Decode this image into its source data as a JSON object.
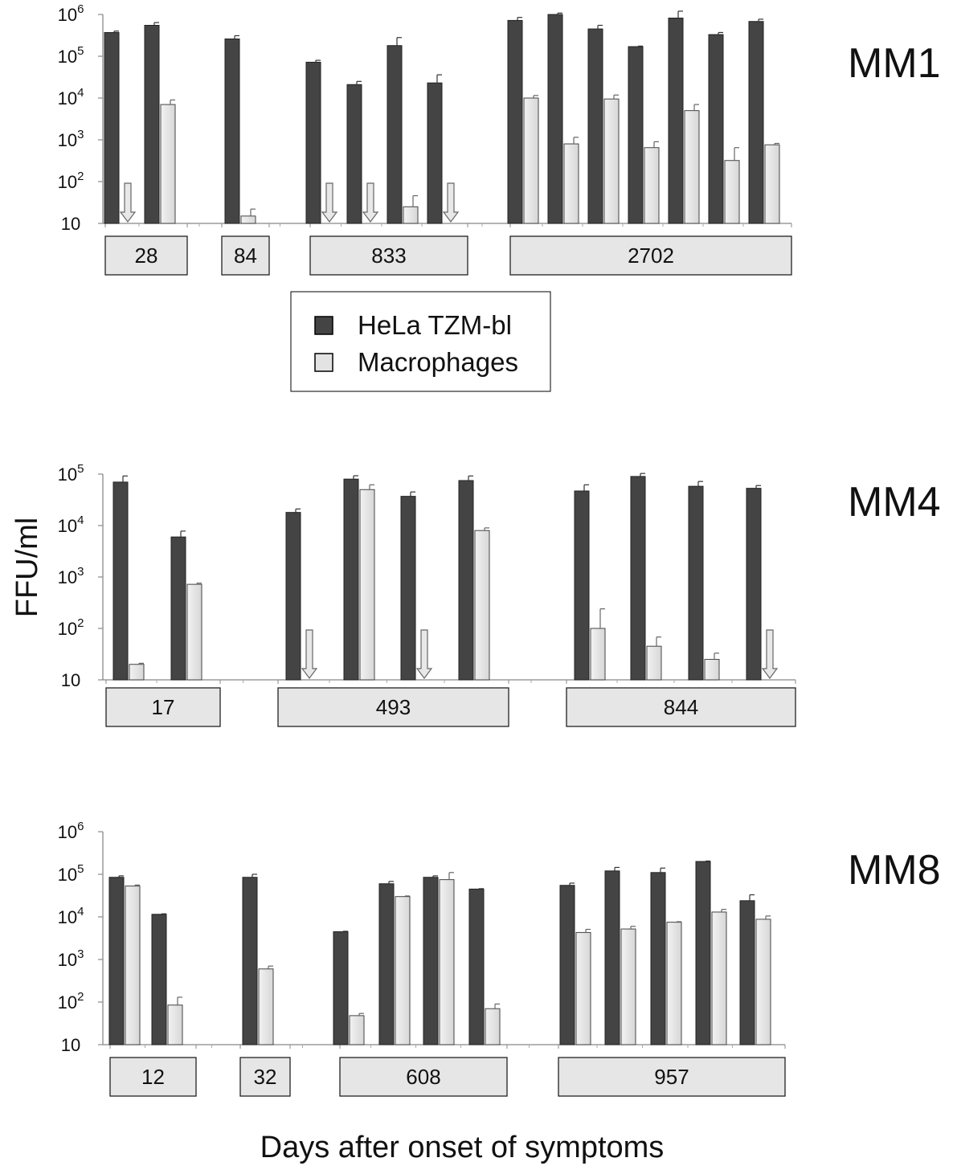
{
  "figure": {
    "ylabel": "FFU/ml",
    "xlabel": "Days after onset of symptoms",
    "legend": {
      "placement": "between-first-and-second-panel",
      "items": [
        {
          "label": "HeLa TZM-bl",
          "color": "#444444"
        },
        {
          "label": "Macrophages",
          "color": "#e3e3e3"
        }
      ]
    }
  },
  "chart_data": [
    {
      "type": "bar",
      "title": "MM1",
      "yscale": "log",
      "ylim": [
        10,
        1000000
      ],
      "ytick_labels": [
        {
          "base": "10",
          "exp": "6"
        },
        {
          "base": "10",
          "exp": "5"
        },
        {
          "base": "10",
          "exp": "4"
        },
        {
          "base": "10",
          "exp": "3"
        },
        {
          "base": "10",
          "exp": "2"
        },
        {
          "base": "10",
          "exp": ""
        }
      ],
      "groups": [
        {
          "label": "28",
          "n": 2
        },
        {
          "label": "84",
          "n": 1
        },
        {
          "label": "833",
          "n": 4
        },
        {
          "label": "2702",
          "n": 7
        }
      ],
      "series": [
        {
          "name": "HeLa TZM-bl",
          "color": "#444444",
          "values": [
            370000,
            550000,
            260000,
            72000,
            21000,
            180000,
            23000,
            720000,
            1000000,
            450000,
            170000,
            820000,
            330000,
            680000
          ],
          "errors": [
            400000,
            640000,
            310000,
            80000,
            25000,
            280000,
            36000,
            850000,
            1080000,
            550000,
            175000,
            1200000,
            370000,
            770000
          ]
        },
        {
          "name": "Macrophages",
          "color": "#e3e3e3",
          "values": [
            null,
            7000,
            15,
            null,
            null,
            25,
            null,
            10000,
            800,
            9500,
            650,
            5000,
            320,
            760
          ],
          "errors": [
            null,
            9000,
            22,
            null,
            null,
            46,
            null,
            11500,
            1150,
            11800,
            900,
            7000,
            650,
            820
          ]
        }
      ],
      "below_detection": {
        "series": "Macrophages",
        "indices": [
          0,
          3,
          4,
          6
        ],
        "marker": "down-arrow"
      }
    },
    {
      "type": "bar",
      "title": "MM4",
      "yscale": "log",
      "ylim": [
        10,
        100000
      ],
      "ytick_labels": [
        {
          "base": "10",
          "exp": "5"
        },
        {
          "base": "10",
          "exp": "4"
        },
        {
          "base": "10",
          "exp": "3"
        },
        {
          "base": "10",
          "exp": "2"
        },
        {
          "base": "10",
          "exp": ""
        }
      ],
      "groups": [
        {
          "label": "17",
          "n": 2
        },
        {
          "label": "493",
          "n": 4
        },
        {
          "label": "844",
          "n": 4
        }
      ],
      "series": [
        {
          "name": "HeLa TZM-bl",
          "color": "#444444",
          "values": [
            70000,
            6000,
            18000,
            80000,
            37000,
            75000,
            47000,
            90000,
            58000,
            53000
          ],
          "errors": [
            92000,
            7800,
            21000,
            93000,
            45000,
            92000,
            62000,
            103000,
            72000,
            60000
          ]
        },
        {
          "name": "Macrophages",
          "color": "#e3e3e3",
          "values": [
            20,
            720,
            null,
            50000,
            null,
            8000,
            100,
            45,
            25,
            null
          ],
          "errors": [
            21,
            760,
            null,
            62000,
            null,
            9000,
            240,
            68,
            33,
            null
          ]
        }
      ],
      "below_detection": {
        "series": "Macrophages",
        "indices": [
          2,
          4,
          9
        ],
        "marker": "down-arrow"
      }
    },
    {
      "type": "bar",
      "title": "MM8",
      "yscale": "log",
      "ylim": [
        10,
        1000000
      ],
      "ytick_labels": [
        {
          "base": "10",
          "exp": "6"
        },
        {
          "base": "10",
          "exp": "5"
        },
        {
          "base": "10",
          "exp": "4"
        },
        {
          "base": "10",
          "exp": "3"
        },
        {
          "base": "10",
          "exp": "2"
        },
        {
          "base": "10",
          "exp": ""
        }
      ],
      "groups": [
        {
          "label": "12",
          "n": 2
        },
        {
          "label": "32",
          "n": 1
        },
        {
          "label": "608",
          "n": 4
        },
        {
          "label": "957",
          "n": 5
        }
      ],
      "series": [
        {
          "name": "HeLa TZM-bl",
          "color": "#444444",
          "values": [
            85000,
            11500,
            85000,
            4500,
            60000,
            85000,
            45000,
            55000,
            120000,
            110000,
            200000,
            24000
          ],
          "errors": [
            92000,
            11800,
            100000,
            4600,
            68000,
            92000,
            46000,
            62000,
            145000,
            140000,
            205000,
            33000
          ],
          "slots": [
            0,
            1,
            2,
            3,
            4,
            5,
            6,
            7,
            8,
            9,
            10,
            11
          ]
        },
        {
          "name": "Macrophages",
          "color": "#e3e3e3",
          "values": [
            53000,
            85,
            600,
            48,
            30000,
            75000,
            70,
            4300,
            5200,
            7500,
            13000,
            8800
          ],
          "errors": [
            56000,
            130,
            700,
            54,
            31000,
            110000,
            90,
            5100,
            6000,
            7700,
            15000,
            10500
          ]
        }
      ]
    }
  ]
}
